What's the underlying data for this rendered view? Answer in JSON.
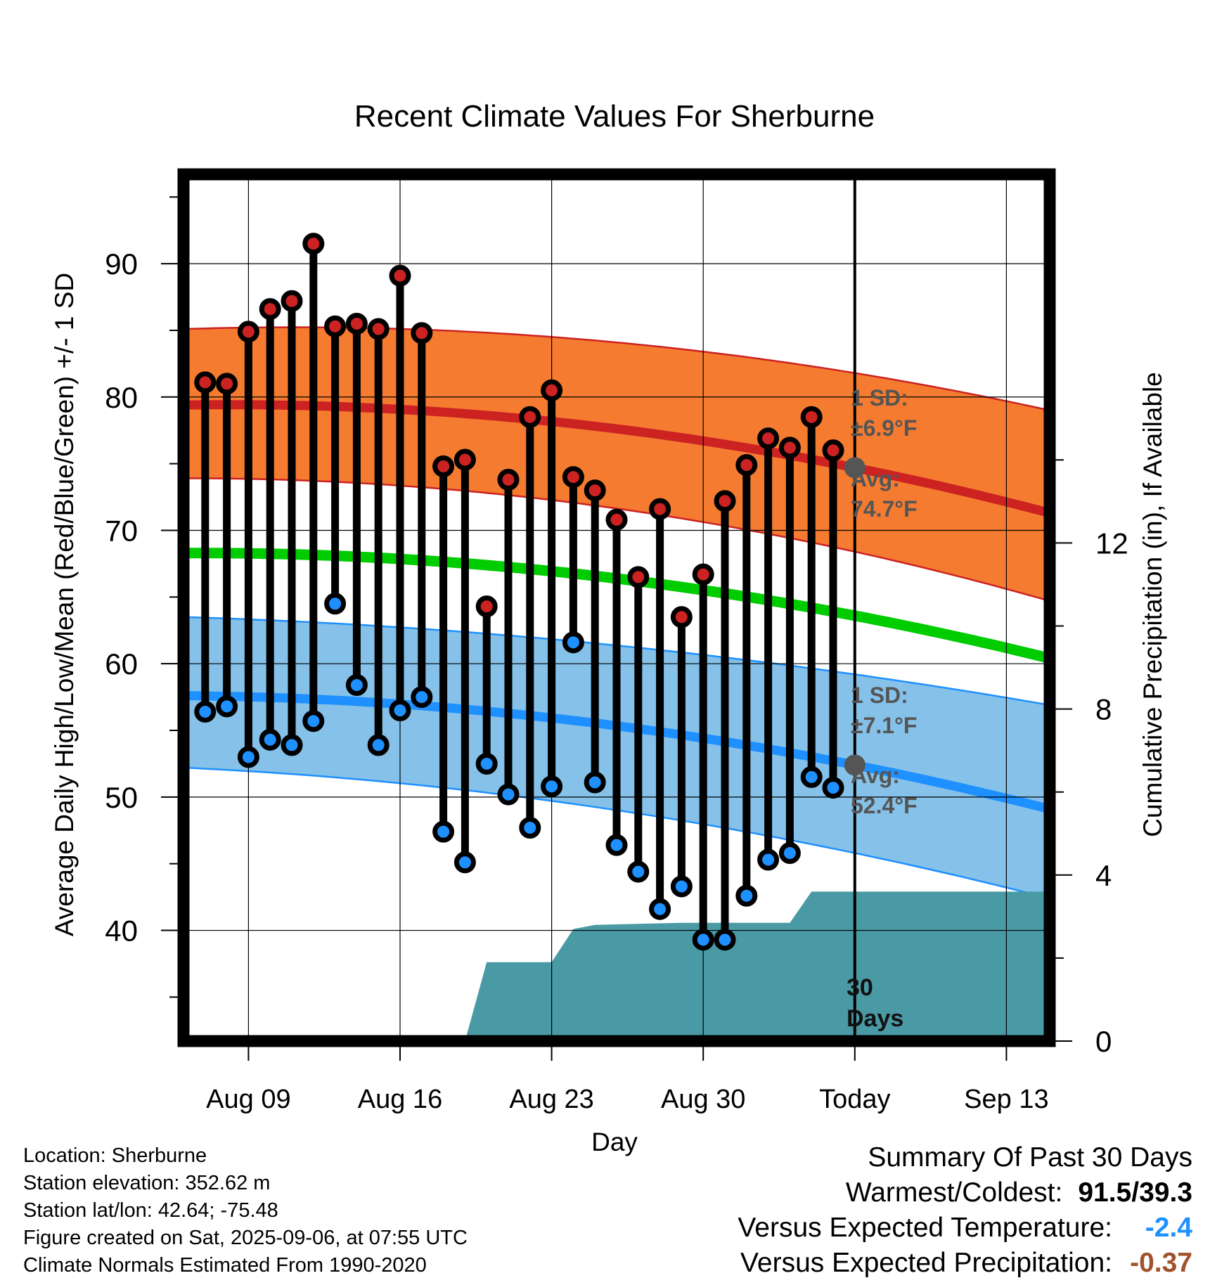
{
  "chart_data": {
    "type": "line",
    "title": "Recent Climate Values For Sherburne",
    "xlabel": "Day",
    "ylabel": "Average Daily High/Low/Mean (Red/Blue/Green) +/- 1 SD",
    "y2label": "Cumulative Precipitation (in), If Available",
    "x_ticks": [
      "Aug 09",
      "Aug 16",
      "Aug 23",
      "Aug 30",
      "Today",
      "Sep 13"
    ],
    "y_ticks": [
      40,
      50,
      60,
      70,
      80,
      90
    ],
    "y2_ticks": [
      0,
      4,
      8,
      12
    ],
    "ylim": [
      31.7,
      96.7
    ],
    "y2lim": [
      0,
      20.88
    ],
    "x_start": "Aug 06",
    "x_end": "Sep 15",
    "today": "Sep 06",
    "grid": true,
    "daily": {
      "dates": [
        "Aug 07",
        "Aug 08",
        "Aug 09",
        "Aug 10",
        "Aug 11",
        "Aug 12",
        "Aug 13",
        "Aug 14",
        "Aug 15",
        "Aug 16",
        "Aug 17",
        "Aug 18",
        "Aug 19",
        "Aug 20",
        "Aug 21",
        "Aug 22",
        "Aug 23",
        "Aug 24",
        "Aug 25",
        "Aug 26",
        "Aug 27",
        "Aug 28",
        "Aug 29",
        "Aug 30",
        "Aug 31",
        "Sep 01",
        "Sep 02",
        "Sep 03",
        "Sep 04",
        "Sep 05"
      ],
      "high": [
        81.1,
        81.0,
        84.9,
        86.6,
        87.2,
        91.5,
        85.3,
        85.5,
        85.1,
        89.1,
        84.8,
        74.8,
        75.3,
        64.3,
        73.8,
        78.5,
        80.5,
        74.0,
        73.0,
        70.8,
        66.5,
        71.6,
        63.5,
        66.7,
        72.2,
        74.9,
        76.9,
        76.2,
        78.5,
        76.0
      ],
      "low": [
        56.4,
        56.8,
        53.0,
        54.3,
        53.9,
        55.7,
        64.5,
        58.4,
        53.9,
        56.5,
        57.5,
        47.4,
        45.1,
        52.5,
        50.2,
        47.7,
        50.8,
        61.6,
        51.1,
        46.4,
        44.4,
        41.6,
        43.3,
        39.3,
        39.3,
        42.6,
        45.3,
        45.8,
        51.5,
        50.7
      ]
    },
    "normals": {
      "dates": [
        "Aug 06",
        "Sep 06",
        "Sep 15"
      ],
      "high_mean": [
        79.4,
        74.7,
        71.3
      ],
      "high_upper": [
        85.1,
        81.8,
        79.0
      ],
      "high_lower": [
        73.9,
        68.4,
        64.7
      ],
      "mean": [
        68.3,
        63.6,
        60.4
      ],
      "low_mean": [
        57.6,
        52.4,
        49.1
      ],
      "low_upper": [
        63.5,
        59.2,
        56.9
      ],
      "low_lower": [
        52.2,
        45.8,
        42.4
      ]
    },
    "precipitation": {
      "dates": [
        "Aug 19",
        "Aug 20",
        "Aug 23",
        "Aug 24",
        "Aug 25",
        "Aug 29",
        "Sep 03",
        "Sep 04",
        "Sep 06"
      ],
      "cumulative": [
        0.0,
        1.9,
        1.9,
        2.7,
        2.8,
        2.85,
        2.85,
        3.6,
        3.6
      ]
    },
    "annotations": {
      "high_sd_label": "1 SD:",
      "high_sd_value": "±6.9°F",
      "high_avg_label": "Avg:",
      "high_avg_value": "74.7°F",
      "low_sd_label": "1 SD:",
      "low_sd_value": "±7.1°F",
      "low_avg_label": "Avg:",
      "low_avg_value": "52.4°F",
      "days_number": "30",
      "days_word": "Days"
    }
  },
  "colors": {
    "high_band": "#f47b30",
    "high_line": "#cc2222",
    "low_band": "#85c1e8",
    "low_line": "#1e90ff",
    "mean_line": "#00cc00",
    "precip_fill": "#4a9aa5",
    "high_dot": "#cc2222",
    "low_dot": "#1e90ff",
    "annotation": "#555555",
    "cooler": "#1e90ff",
    "drier": "#a0522d"
  },
  "footer": {
    "location": "Location: Sherburne",
    "elevation": "Station elevation: 352.62 m",
    "latlon": "Station lat/lon: 42.64; -75.48",
    "created": "Figure created on Sat, 2025-09-06, at 07:55 UTC",
    "normals": "Climate Normals Estimated From 1990-2020"
  },
  "summary": {
    "heading": "Summary Of Past 30 Days",
    "warmest_label": "Warmest/Coldest:",
    "warmest_value": "91.5/39.3",
    "temp_label": "Versus Expected Temperature:",
    "temp_value": "-2.4",
    "precip_label": "Versus Expected Precipitation:",
    "precip_value": "-0.37"
  }
}
